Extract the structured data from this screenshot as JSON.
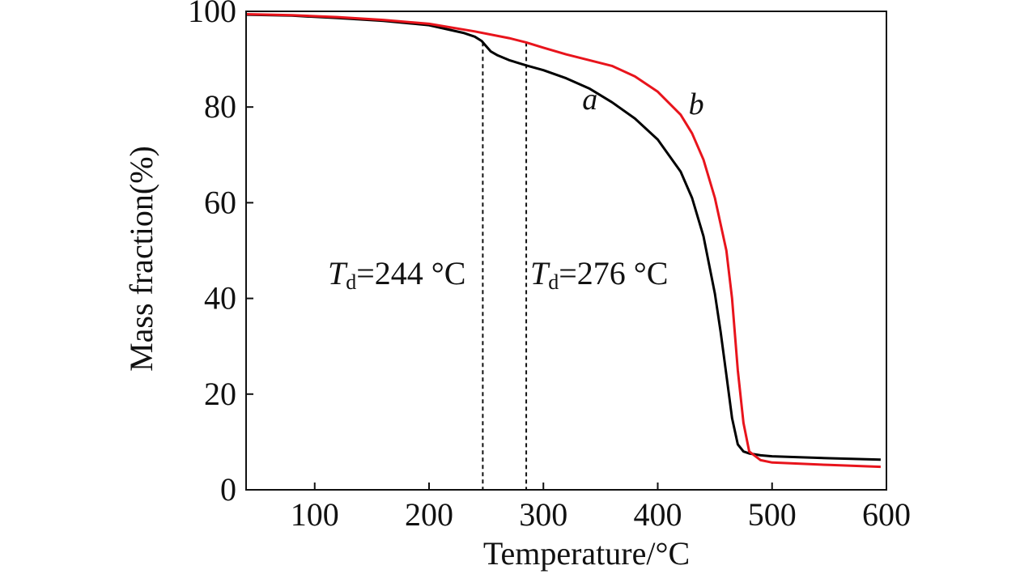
{
  "chart_data": {
    "type": "line",
    "xlabel": "Temperature/°C",
    "ylabel": "Mass fraction(%)",
    "xlim": [
      40,
      600
    ],
    "ylim": [
      0,
      100
    ],
    "xticks": [
      100,
      200,
      300,
      400,
      500,
      600
    ],
    "xtick_labels": [
      "100",
      "200",
      "300",
      "400",
      "500",
      "600"
    ],
    "yticks": [
      0,
      20,
      40,
      60,
      80,
      100
    ],
    "ytick_labels": [
      "0",
      "20",
      "40",
      "60",
      "80",
      "100"
    ],
    "grid": false,
    "colors": {
      "a": "#000000",
      "b": "#e8141c"
    },
    "series": [
      {
        "name": "a",
        "x": [
          40,
          80,
          120,
          160,
          200,
          230,
          240,
          246,
          250,
          254,
          260,
          270,
          285,
          300,
          320,
          340,
          360,
          380,
          400,
          420,
          430,
          440,
          450,
          455,
          460,
          465,
          470,
          475,
          480,
          490,
          500,
          550,
          595
        ],
        "y": [
          99.3,
          99.1,
          98.6,
          98.0,
          97.1,
          95.5,
          94.7,
          93.8,
          92.7,
          91.6,
          90.8,
          89.8,
          88.7,
          87.7,
          86.0,
          83.9,
          81.0,
          77.6,
          73.2,
          66.5,
          61.0,
          53.0,
          41.0,
          33.0,
          24.0,
          15.0,
          9.5,
          8.0,
          7.6,
          7.2,
          7.0,
          6.6,
          6.3
        ]
      },
      {
        "name": "b",
        "x": [
          40,
          80,
          120,
          160,
          200,
          240,
          270,
          285,
          300,
          320,
          340,
          360,
          380,
          400,
          420,
          430,
          440,
          450,
          460,
          465,
          470,
          475,
          480,
          490,
          500,
          550,
          595
        ],
        "y": [
          99.4,
          99.2,
          98.8,
          98.2,
          97.4,
          95.8,
          94.4,
          93.5,
          92.4,
          91.0,
          89.8,
          88.6,
          86.4,
          83.2,
          78.4,
          74.5,
          69.0,
          61.0,
          50.0,
          40.0,
          25.0,
          14.0,
          8.0,
          6.2,
          5.7,
          5.2,
          4.8
        ]
      }
    ],
    "curve_labels": [
      "a",
      "b"
    ],
    "reference_lines": [
      {
        "x": 247,
        "label_symbol": "T",
        "label_subscript": "d",
        "label_text": "=244 °C"
      },
      {
        "x": 285,
        "label_symbol": "T",
        "label_subscript": "d",
        "label_text": "=276 °C"
      }
    ]
  }
}
